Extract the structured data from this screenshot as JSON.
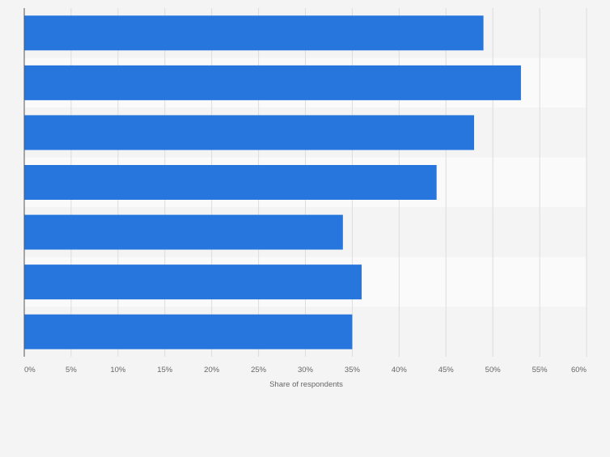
{
  "chart_data": {
    "type": "bar",
    "orientation": "horizontal",
    "categories": [
      "",
      "",
      "",
      "",
      "",
      "",
      ""
    ],
    "values": [
      49,
      53,
      48,
      44,
      34,
      36,
      35
    ],
    "unit": "%",
    "xlabel": "Share of respondents",
    "ylabel": "",
    "xlim": [
      0,
      60
    ],
    "ticks": [
      "0%",
      "5%",
      "10%",
      "15%",
      "20%",
      "25%",
      "30%",
      "35%",
      "40%",
      "45%",
      "50%",
      "55%",
      "60%"
    ],
    "grid": true,
    "legend": "none"
  },
  "colors": {
    "bar": "#2776dd",
    "background": "#f4f4f4",
    "band_light": "#fafafa",
    "band_dark": "#f4f4f4",
    "gridline": "#dddddd",
    "axis": "#555555",
    "tick_text": "#666666"
  }
}
